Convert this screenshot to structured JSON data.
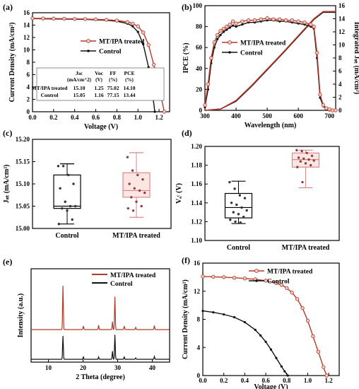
{
  "colors": {
    "treated": "#b23a2a",
    "treated_fill": "#f3c9c0",
    "control": "#111111",
    "box_red": "#d88a87"
  },
  "chart_data": [
    {
      "panel": "(a)",
      "type": "line",
      "xlabel": "Voltage (V)",
      "ylabel": "Current Density (mA/cm²)",
      "xlim": [
        0,
        1.3
      ],
      "ylim": [
        0,
        16
      ],
      "xticks": [
        "0.0",
        "0.2",
        "0.4",
        "0.6",
        "0.8",
        "1.0",
        "1.2"
      ],
      "yticks": [
        "0",
        "2",
        "4",
        "6",
        "8",
        "10",
        "12",
        "14",
        "16"
      ],
      "legend": [
        "MT/IPA treated",
        "Control"
      ],
      "legend_position": "center-right",
      "series": [
        {
          "name": "MT/IPA treated",
          "voc": 1.25,
          "jsc": 15.1,
          "x": [
            0,
            0.1,
            0.2,
            0.3,
            0.4,
            0.5,
            0.6,
            0.7,
            0.8,
            0.9,
            0.95,
            1.0,
            1.05,
            1.1,
            1.15,
            1.2,
            1.25
          ],
          "y": [
            15.1,
            15.08,
            15.06,
            15.04,
            15.01,
            14.98,
            14.93,
            14.86,
            14.74,
            14.5,
            14.25,
            13.8,
            12.8,
            10.8,
            7.6,
            3.9,
            0
          ]
        },
        {
          "name": "Control",
          "voc": 1.16,
          "jsc": 15.05,
          "x": [
            0,
            0.1,
            0.2,
            0.3,
            0.4,
            0.5,
            0.6,
            0.7,
            0.8,
            0.9,
            0.95,
            1.0,
            1.05,
            1.1,
            1.13,
            1.16
          ],
          "y": [
            15.05,
            15.03,
            15.0,
            14.98,
            14.95,
            14.92,
            14.86,
            14.78,
            14.62,
            14.25,
            13.8,
            12.9,
            10.9,
            7.2,
            4.0,
            0
          ]
        }
      ],
      "table": {
        "headers": [
          "",
          "Jsc",
          "Voc",
          "FF",
          "PCE"
        ],
        "units": [
          "",
          "(mA/cm^2)",
          "(V)",
          "(%)",
          "(%)"
        ],
        "rows": [
          [
            "MT/IPA treated",
            "15.10",
            "1.25",
            "75.02",
            "14.10"
          ],
          [
            "Control",
            "15.05",
            "1.16",
            "77.15",
            "13.44"
          ]
        ]
      }
    },
    {
      "panel": "(b)",
      "type": "line",
      "xlabel": "Wavelength (nm)",
      "ylabel": "IPCE (%)",
      "y2label": "Integrated Jₛₜ (mA/cm²)",
      "xlim": [
        300,
        720
      ],
      "ylim": [
        0,
        100
      ],
      "y2lim": [
        0,
        16
      ],
      "xticks": [
        "300",
        "400",
        "500",
        "600",
        "700"
      ],
      "yticks": [
        "0",
        "20",
        "40",
        "60",
        "80",
        "100"
      ],
      "y2ticks": [
        "0",
        "2",
        "4",
        "6",
        "8",
        "10",
        "12",
        "14",
        "16"
      ],
      "legend": [
        "MT/IPA treated",
        "Control"
      ],
      "legend_position": "center",
      "series": [
        {
          "name": "MT/IPA treated",
          "x": [
            300,
            310,
            320,
            330,
            340,
            350,
            360,
            370,
            380,
            390,
            400,
            420,
            440,
            460,
            480,
            500,
            520,
            540,
            560,
            580,
            600,
            620,
            640,
            650,
            660,
            670,
            680,
            690,
            700,
            710,
            720
          ],
          "y": [
            5,
            25,
            50,
            65,
            72,
            76,
            78,
            80,
            82,
            85,
            83,
            85,
            86,
            86,
            87,
            88,
            87,
            87,
            86,
            86,
            85,
            84,
            82,
            80,
            55,
            15,
            5,
            2,
            1,
            0,
            0
          ]
        },
        {
          "name": "Control",
          "x": [
            300,
            310,
            320,
            330,
            340,
            350,
            360,
            370,
            380,
            390,
            400,
            420,
            440,
            460,
            480,
            500,
            520,
            540,
            560,
            580,
            600,
            620,
            640,
            650,
            660,
            670,
            680,
            690,
            700,
            710,
            720
          ],
          "y": [
            3,
            20,
            45,
            60,
            68,
            72,
            75,
            77,
            79,
            81,
            80,
            82,
            84,
            84,
            85,
            86,
            86,
            85,
            85,
            84,
            83,
            82,
            80,
            78,
            50,
            12,
            4,
            1,
            0,
            0,
            0
          ]
        },
        {
          "name": "MT/IPA treated integrated",
          "axis": "y2",
          "x": [
            300,
            350,
            400,
            450,
            500,
            550,
            600,
            650,
            680,
            720
          ],
          "y": [
            0,
            0.2,
            1.5,
            3.8,
            6.3,
            8.8,
            11.4,
            14.0,
            15.1,
            15.1
          ]
        },
        {
          "name": "Control integrated",
          "axis": "y2",
          "x": [
            300,
            350,
            400,
            450,
            500,
            550,
            600,
            650,
            680,
            720
          ],
          "y": [
            0,
            0.2,
            1.4,
            3.7,
            6.2,
            8.7,
            11.3,
            13.9,
            15.0,
            15.0
          ]
        }
      ]
    },
    {
      "panel": "(c)",
      "type": "box",
      "ylabel": "Jₛₜ (mA/cm²)",
      "ylim": [
        15.0,
        15.2
      ],
      "yticks": [
        "15.00",
        "15.05",
        "15.10",
        "15.15",
        "15.20"
      ],
      "categories": [
        "Control",
        "MT/IPA treated"
      ],
      "boxes": [
        {
          "min": 15.01,
          "q1": 15.045,
          "median": 15.05,
          "q3": 15.12,
          "max": 15.145,
          "points": [
            15.14,
            15.14,
            15.12,
            15.1,
            15.09,
            15.06,
            15.05,
            15.05,
            15.045,
            15.04,
            15.02,
            15.01
          ]
        },
        {
          "min": 15.025,
          "q1": 15.07,
          "median": 15.085,
          "q3": 15.125,
          "max": 15.17,
          "points": [
            15.16,
            15.13,
            15.12,
            15.11,
            15.1,
            15.09,
            15.085,
            15.08,
            15.07,
            15.06,
            15.05,
            15.045,
            15.04
          ]
        }
      ]
    },
    {
      "panel": "(d)",
      "type": "box",
      "ylabel": "Vₒᶜ (V)",
      "ylim": [
        1.1,
        1.2
      ],
      "yticks": [
        "1.10",
        "1.12",
        "1.14",
        "1.16",
        "1.18",
        "1.20"
      ],
      "categories": [
        "Control",
        "MT/IPA treated"
      ],
      "boxes": [
        {
          "min": 1.118,
          "q1": 1.124,
          "median": 1.135,
          "q3": 1.15,
          "max": 1.163,
          "points": [
            1.162,
            1.155,
            1.148,
            1.145,
            1.14,
            1.138,
            1.135,
            1.132,
            1.13,
            1.128,
            1.125,
            1.122,
            1.12,
            1.119
          ]
        },
        {
          "min": 1.156,
          "q1": 1.178,
          "median": 1.186,
          "q3": 1.193,
          "max": 1.196,
          "points": [
            1.196,
            1.195,
            1.193,
            1.19,
            1.188,
            1.187,
            1.186,
            1.185,
            1.184,
            1.182,
            1.18,
            1.178,
            1.162
          ]
        }
      ]
    },
    {
      "panel": "(e)",
      "type": "line",
      "xlabel": "2 Theta (degree)",
      "ylabel": "Intensity (a.u.)",
      "xlim": [
        5,
        45
      ],
      "xticks": [
        "10",
        "20",
        "30",
        "40"
      ],
      "legend": [
        "MT/IPA treated",
        "Control"
      ],
      "legend_position": "top-right",
      "peaks_treated": [
        [
          14.2,
          1.0
        ],
        [
          20.1,
          0.08
        ],
        [
          24.5,
          0.1
        ],
        [
          28.5,
          0.18
        ],
        [
          29.2,
          0.75
        ],
        [
          31.9,
          0.08
        ],
        [
          35.2,
          0.05
        ],
        [
          40.6,
          0.09
        ]
      ],
      "peaks_control": [
        [
          14.2,
          1.0
        ],
        [
          20.1,
          0.1
        ],
        [
          24.5,
          0.1
        ],
        [
          28.5,
          0.35
        ],
        [
          29.2,
          1.05
        ],
        [
          31.9,
          0.1
        ],
        [
          35.2,
          0.06
        ],
        [
          40.6,
          0.12
        ]
      ]
    },
    {
      "panel": "(f)",
      "type": "line",
      "xlabel": "Voltage (V)",
      "ylabel": "Current Density (mA/cm²)",
      "xlim": [
        0,
        1.3
      ],
      "ylim": [
        0,
        16
      ],
      "xticks": [
        "0.0",
        "0.2",
        "0.4",
        "0.6",
        "0.8",
        "1.0",
        "1.2"
      ],
      "yticks": [
        "0",
        "4",
        "8",
        "12",
        "16"
      ],
      "legend": [
        "MT/IPA treated",
        "Control"
      ],
      "legend_position": "top-right",
      "series": [
        {
          "name": "MT/IPA treated",
          "x": [
            0,
            0.1,
            0.2,
            0.3,
            0.4,
            0.5,
            0.6,
            0.7,
            0.75,
            0.8,
            0.85,
            0.9,
            0.95,
            1.0,
            1.05,
            1.1,
            1.15,
            1.18
          ],
          "y": [
            14.1,
            14.05,
            14.0,
            13.92,
            13.82,
            13.7,
            13.5,
            13.15,
            12.9,
            12.45,
            11.8,
            10.9,
            9.6,
            7.8,
            5.6,
            3.4,
            1.2,
            0
          ]
        },
        {
          "name": "Control",
          "x": [
            0,
            0.1,
            0.2,
            0.3,
            0.4,
            0.5,
            0.55,
            0.6,
            0.65,
            0.7,
            0.75,
            0.78,
            0.81
          ],
          "y": [
            9.2,
            9.0,
            8.7,
            8.3,
            7.6,
            6.5,
            5.7,
            4.8,
            3.7,
            2.5,
            1.3,
            0.6,
            0
          ]
        }
      ]
    }
  ]
}
